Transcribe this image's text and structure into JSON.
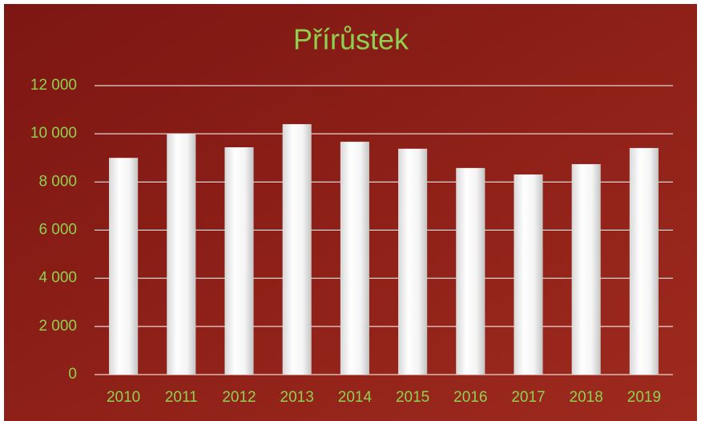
{
  "chart_data": {
    "type": "bar",
    "title": "Přírůstek",
    "categories": [
      "2010",
      "2011",
      "2012",
      "2013",
      "2014",
      "2015",
      "2016",
      "2017",
      "2018",
      "2019"
    ],
    "values": [
      9000,
      10000,
      9440,
      10400,
      9670,
      9380,
      8580,
      8310,
      8740,
      9410
    ],
    "color": "#ffffff",
    "ylim": [
      0,
      12000
    ],
    "yticks": [
      0,
      {
        "value": 2000,
        "label": "2 000"
      },
      {
        "value": 4000,
        "label": "4 000"
      },
      {
        "value": 6000,
        "label": "6 000"
      },
      {
        "value": 8000,
        "label": "8 000"
      },
      {
        "value": 10000,
        "label": "10 000"
      },
      {
        "value": 12000,
        "label": "12 000"
      }
    ],
    "grid": true
  }
}
